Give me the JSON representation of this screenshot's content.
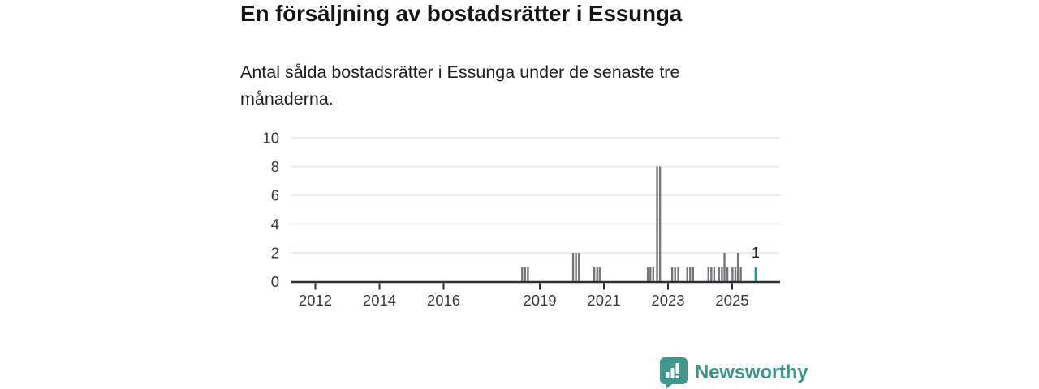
{
  "header": {
    "title": "En försäljning av bostadsrätter i Essunga"
  },
  "subtitle_lines": {
    "line1": "Antal sålda bostadsrätter i Essunga under de senaste tre",
    "line2": "månaderna."
  },
  "branding": {
    "name": "Newsworthy",
    "text_color": "#3d938d",
    "logo_color": "#43968f"
  },
  "chart_data": {
    "type": "bar",
    "title": "En försäljning av bostadsrätter i Essunga",
    "subtitle": "Antal sålda bostadsrätter i Essunga under de senaste tre månaderna.",
    "xlabel": "",
    "ylabel": "",
    "ylim": [
      0,
      10
    ],
    "y_ticks": [
      0,
      2,
      4,
      6,
      8,
      10
    ],
    "x_ticks": [
      2012,
      2014,
      2016,
      2019,
      2021,
      2023,
      2025
    ],
    "xlim": [
      2011.25,
      2026.5
    ],
    "grid": true,
    "legend": "none",
    "bar_color": "#73767b",
    "highlight_color": "#1aa096",
    "axis_color": "#2d2e30",
    "grid_color": "#e7e7e9",
    "tick_label_color": "#383838",
    "annotation": {
      "text": "1",
      "x": 2025.73,
      "value": 1
    },
    "bars": [
      {
        "x": 2018.45,
        "v": 1
      },
      {
        "x": 2018.54,
        "v": 1
      },
      {
        "x": 2018.63,
        "v": 1
      },
      {
        "x": 2020.04,
        "v": 2
      },
      {
        "x": 2020.13,
        "v": 2
      },
      {
        "x": 2020.22,
        "v": 2
      },
      {
        "x": 2020.7,
        "v": 1
      },
      {
        "x": 2020.79,
        "v": 1
      },
      {
        "x": 2020.87,
        "v": 1
      },
      {
        "x": 2022.37,
        "v": 1
      },
      {
        "x": 2022.45,
        "v": 1
      },
      {
        "x": 2022.54,
        "v": 1
      },
      {
        "x": 2022.66,
        "v": 8
      },
      {
        "x": 2022.75,
        "v": 8
      },
      {
        "x": 2023.13,
        "v": 1
      },
      {
        "x": 2023.22,
        "v": 1
      },
      {
        "x": 2023.32,
        "v": 1
      },
      {
        "x": 2023.6,
        "v": 1
      },
      {
        "x": 2023.69,
        "v": 1
      },
      {
        "x": 2023.78,
        "v": 1
      },
      {
        "x": 2024.26,
        "v": 1
      },
      {
        "x": 2024.35,
        "v": 1
      },
      {
        "x": 2024.44,
        "v": 1
      },
      {
        "x": 2024.59,
        "v": 1
      },
      {
        "x": 2024.68,
        "v": 1
      },
      {
        "x": 2024.76,
        "v": 2
      },
      {
        "x": 2024.85,
        "v": 1
      },
      {
        "x": 2025.01,
        "v": 1
      },
      {
        "x": 2025.1,
        "v": 1
      },
      {
        "x": 2025.18,
        "v": 2
      },
      {
        "x": 2025.27,
        "v": 1
      },
      {
        "x": 2025.73,
        "v": 1,
        "highlight": true
      }
    ]
  }
}
